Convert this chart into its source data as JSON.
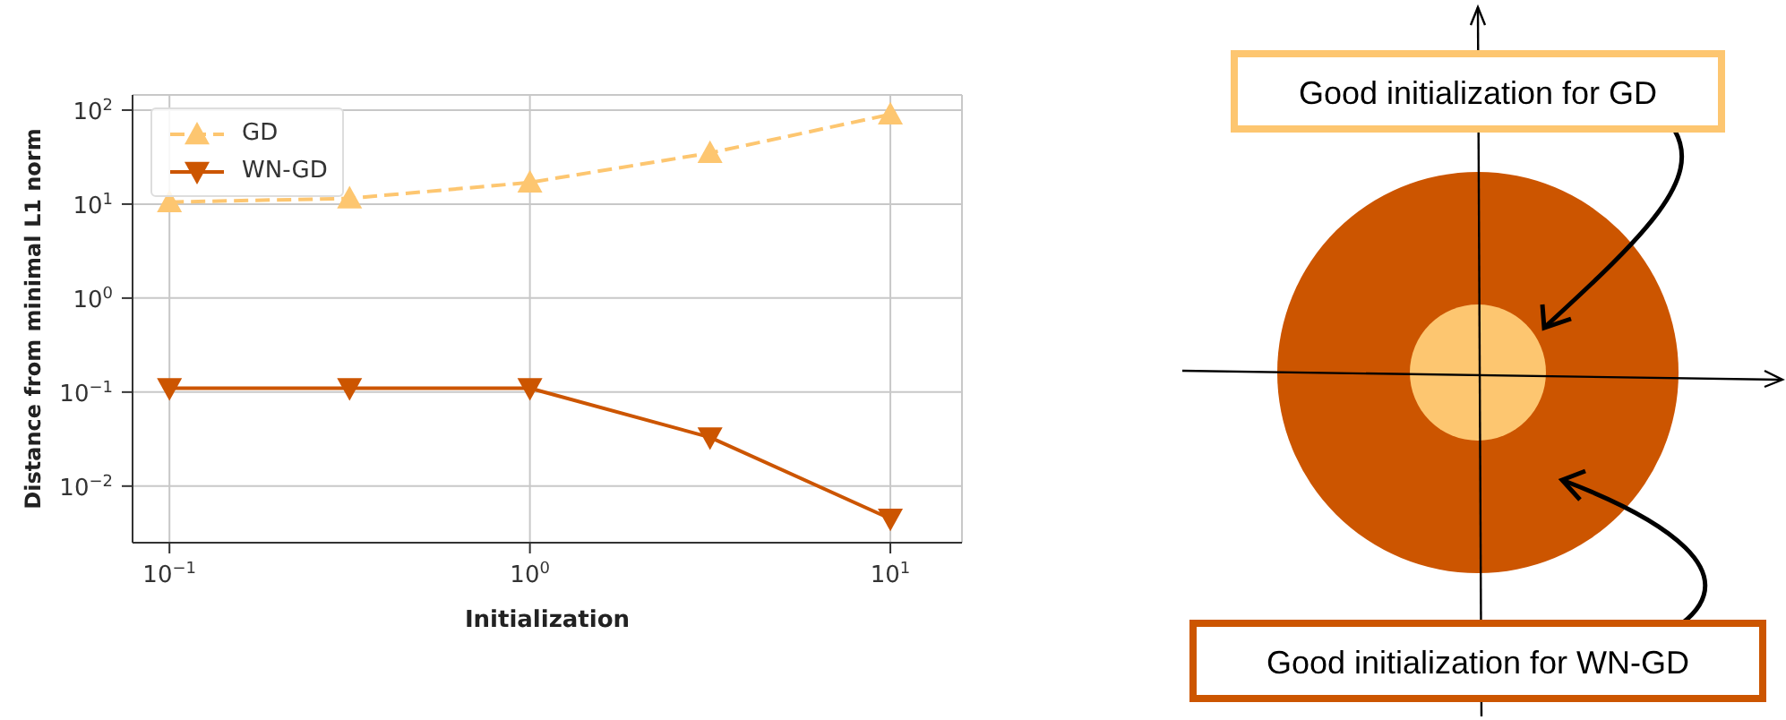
{
  "chart_data": {
    "type": "line",
    "xlabel": "Initialization",
    "ylabel": "Distance from minimal L1 norm",
    "log": "xy",
    "grid": true,
    "legend": "top left",
    "x": [
      0.1,
      0.316,
      1,
      3.16,
      10
    ],
    "xlim": [
      0.079,
      15.8
    ],
    "xticks": [
      {
        "value": 0.1,
        "label": "10$^{−1}$"
      },
      {
        "value": 1,
        "label": "10$^{0}$"
      },
      {
        "value": 10,
        "label": "10$^{1}$"
      }
    ],
    "ylim": [
      0.0025,
      145
    ],
    "yticks": [
      {
        "value": 0.01,
        "label": "10$^{−2}$"
      },
      {
        "value": 0.1,
        "label": "10$^{−1}$"
      },
      {
        "value": 1,
        "label": "10$^{0}$"
      },
      {
        "value": 10,
        "label": "10$^{1}$"
      },
      {
        "value": 100,
        "label": "10$^{2}$"
      }
    ],
    "series": [
      {
        "name": "GD",
        "color": "#fdc670",
        "marker": "triangle",
        "line_style": "dashed",
        "values": [
          10.5,
          11.5,
          17,
          35,
          90
        ]
      },
      {
        "name": "WN-GD",
        "color": "#cc5500",
        "marker": "triangle-down",
        "line_style": "solid",
        "values": [
          0.11,
          0.11,
          0.11,
          0.033,
          0.0045
        ]
      }
    ],
    "annotations": [
      "Good initialization for GD",
      "Good initialization for WN-GD"
    ]
  }
}
